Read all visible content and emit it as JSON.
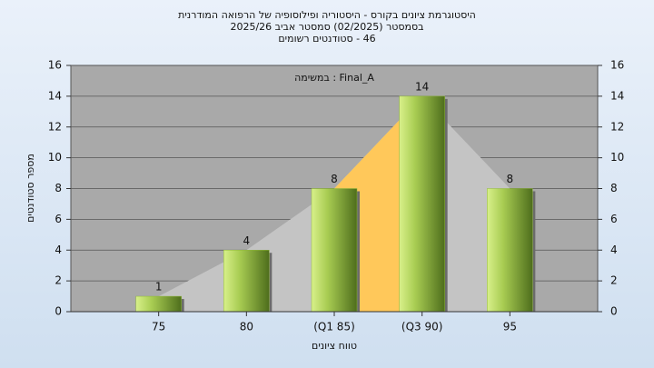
{
  "chart_data": {
    "type": "bar",
    "title": "היסטוגרמת ציונים בקורס - היסטוריה ופילוסופיה של הרפואה המודרנית",
    "subtitle": "בסמסטר (02/2025) סמסטר אביב 2025/26",
    "subtitle2": "46 - סטודנטים רשומים",
    "annotation": "Final_A : במשימה",
    "x_label": "טווח ציונים",
    "y_label": "מספר סטודנטים",
    "categories": [
      "75",
      "80",
      "(Q1 85)",
      "(Q3 90)",
      "95"
    ],
    "values": [
      1,
      4,
      8,
      14,
      8
    ],
    "color": "#8fb83a",
    "area_color": "#c4c4c4",
    "quartile_color": "#ffc85a",
    "ylim": [
      0,
      16
    ],
    "yticks": [
      0,
      2,
      4,
      6,
      8,
      10,
      12,
      14,
      16
    ],
    "y2lim": [
      0,
      16
    ],
    "y2ticks": [
      0,
      2,
      4,
      6,
      8,
      10,
      12,
      14,
      16
    ],
    "grid": true
  }
}
